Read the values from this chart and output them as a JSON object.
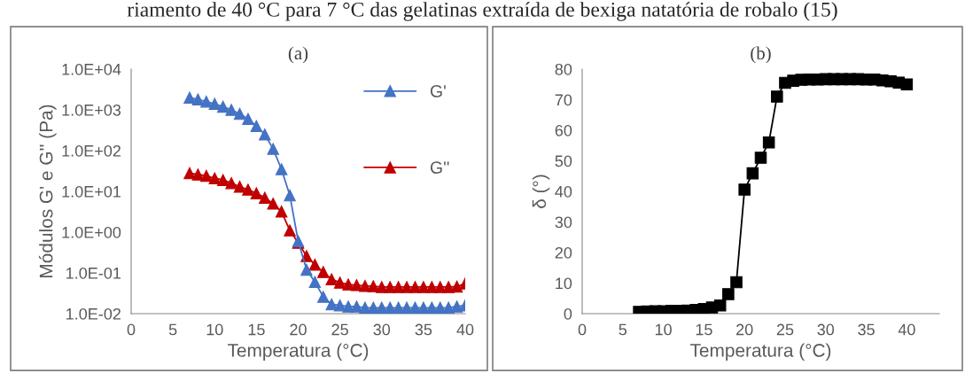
{
  "chart_data": [
    {
      "type": "line",
      "title": "(a)",
      "xlabel": "Temperatura (°C)",
      "ylabel": "Módulos G' e G'' (Pa)",
      "log": "y",
      "legend": "top right",
      "marker": "triangle",
      "grid": false,
      "annotations": [
        "riamento de 40 °C para 7 °C das gelatinas extraída de bexiga natatória de robalo (15)"
      ],
      "x": [
        7,
        8,
        9,
        10,
        11,
        12,
        13,
        14,
        15,
        16,
        17,
        18,
        19,
        20,
        21,
        22,
        23,
        24,
        25,
        26,
        27,
        28,
        29,
        30,
        31,
        32,
        33,
        34,
        35,
        36,
        37,
        38,
        39,
        40
      ],
      "xlim": [
        0,
        40
      ],
      "xticks": [
        0,
        5,
        10,
        15,
        20,
        25,
        30,
        35,
        40
      ],
      "ylim": [
        0.01,
        10000
      ],
      "yticks": [
        {
          "value": 0.01,
          "label": "1.0E-02"
        },
        {
          "value": 0.1,
          "label": "1.0E-01"
        },
        {
          "value": 1,
          "label": "1.0E+00"
        },
        {
          "value": 10,
          "label": "1.0E+01"
        },
        {
          "value": 100,
          "label": "1.0E+02"
        },
        {
          "value": 1000,
          "label": "1.0E+03"
        },
        {
          "value": 10000,
          "label": "1.0E+04"
        }
      ],
      "series": [
        {
          "name": "G'",
          "color": "#4472c4",
          "values": [
            2000,
            1800,
            1600,
            1400,
            1200,
            1000,
            800,
            600,
            400,
            250,
            110,
            35,
            8,
            0.6,
            0.12,
            0.06,
            0.026,
            0.017,
            0.016,
            0.015,
            0.015,
            0.014,
            0.014,
            0.014,
            0.014,
            0.014,
            0.014,
            0.014,
            0.014,
            0.014,
            0.014,
            0.014,
            0.015,
            0.016
          ]
        },
        {
          "name": "G''",
          "color": "#c00000",
          "values": [
            28,
            26,
            24,
            21,
            19,
            16,
            13,
            11,
            9,
            7,
            5,
            3.2,
            1.1,
            0.55,
            0.26,
            0.16,
            0.105,
            0.07,
            0.058,
            0.052,
            0.05,
            0.048,
            0.047,
            0.045,
            0.045,
            0.045,
            0.045,
            0.045,
            0.045,
            0.045,
            0.045,
            0.045,
            0.046,
            0.055
          ]
        }
      ]
    },
    {
      "type": "line",
      "title": "(b)",
      "xlabel": "Temperatura (°C)",
      "ylabel": "δ (°)",
      "marker": "square",
      "grid": false,
      "x": [
        7,
        8,
        9,
        10,
        11,
        12,
        13,
        14,
        15,
        16,
        17,
        18,
        19,
        20,
        21,
        22,
        23,
        24,
        25,
        26,
        27,
        28,
        29,
        30,
        31,
        32,
        33,
        34,
        35,
        36,
        37,
        38,
        39,
        40
      ],
      "xlim": [
        0,
        44
      ],
      "xticks": [
        0,
        5,
        10,
        15,
        20,
        25,
        30,
        35,
        40
      ],
      "ylim": [
        0,
        80
      ],
      "yticks": [
        0,
        10,
        20,
        30,
        40,
        50,
        60,
        70,
        80
      ],
      "series": [
        {
          "color": "#000000",
          "values": [
            0.6,
            0.7,
            0.8,
            0.8,
            0.9,
            0.9,
            1.0,
            1.2,
            1.5,
            2,
            2.7,
            6.4,
            10.3,
            40.6,
            45.9,
            51,
            56,
            71,
            75.5,
            76.2,
            76.5,
            76.6,
            76.6,
            76.7,
            76.7,
            76.7,
            76.7,
            76.7,
            76.6,
            76.6,
            76.3,
            76,
            75.6,
            75
          ]
        }
      ]
    }
  ]
}
